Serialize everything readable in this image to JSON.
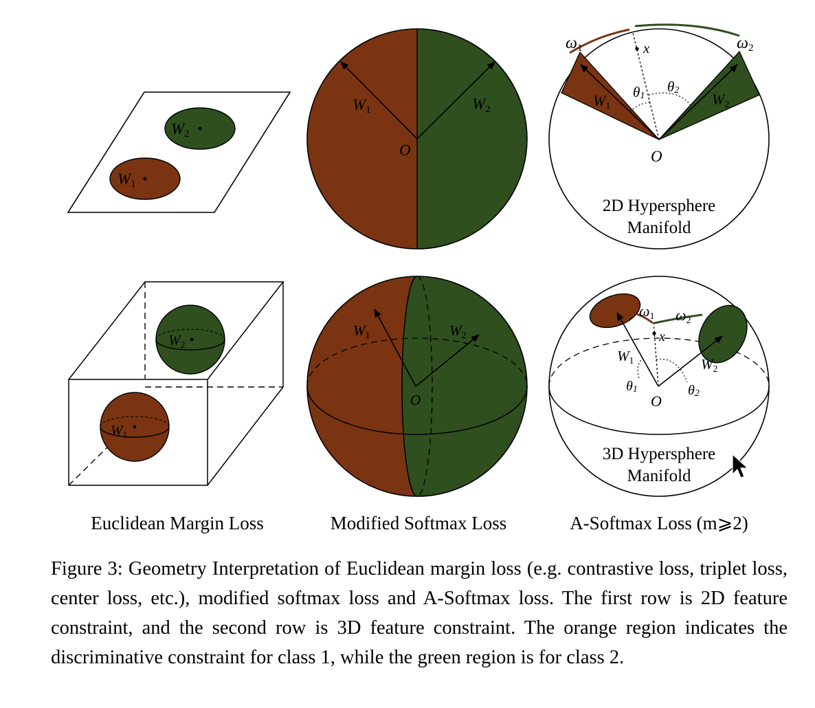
{
  "colors": {
    "class1": "#7a3412",
    "class2": "#2f4f1f",
    "stroke": "#000000",
    "background": "#ffffff"
  },
  "labels": {
    "w1_main": "W",
    "w1_sub": "1",
    "w2_main": "W",
    "w2_sub": "2",
    "origin": "O",
    "x": "x",
    "omega1_main": "ω",
    "omega1_sub": "1",
    "omega2_main": "ω",
    "omega2_sub": "2",
    "theta1_main": "θ",
    "theta1_sub": "1",
    "theta2_main": "θ",
    "theta2_sub": "2"
  },
  "panels": {
    "hypersphere_2d": [
      "2D Hypersphere",
      "Manifold"
    ],
    "hypersphere_3d": [
      "3D Hypersphere",
      "Manifold"
    ]
  },
  "column_titles": {
    "euclidean": "Euclidean Margin Loss",
    "modified": "Modified Softmax Loss",
    "asoftmax": "A-Softmax Loss (m⩾2)"
  },
  "caption": "Figure 3: Geometry Interpretation of Euclidean margin loss (e.g. contrastive loss, triplet loss, center loss, etc.), modified softmax loss and A-Softmax loss. The first row is 2D feature constraint, and the second row is 3D feature constraint. The orange region indicates the discriminative constraint for class 1, while the green region is for class 2."
}
